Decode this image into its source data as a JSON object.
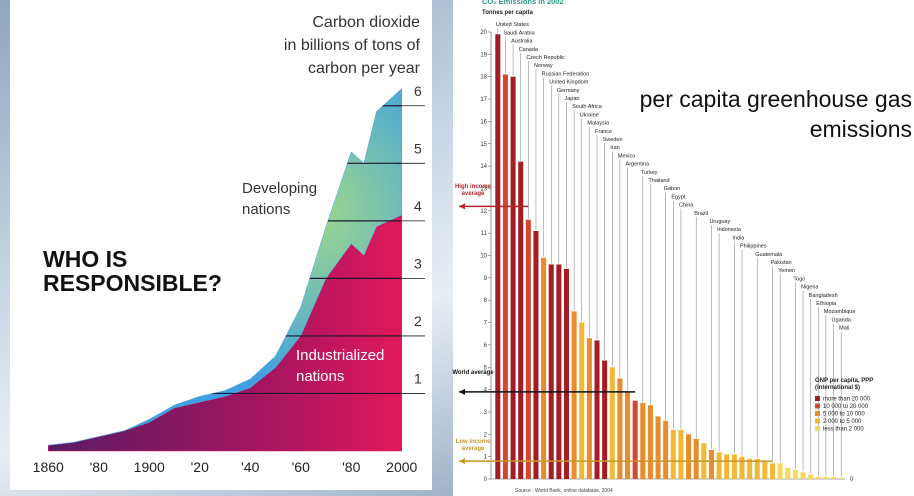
{
  "chart_data": [
    {
      "type": "stacked-area",
      "title": [
        "Carbon dioxide",
        "in billions of tons of",
        "carbon per year"
      ],
      "annotation": [
        "WHO IS",
        "RESPONSIBLE?"
      ],
      "x": [
        1860,
        1870,
        1880,
        1890,
        1900,
        1910,
        1920,
        1930,
        1940,
        1950,
        1960,
        1970,
        1980,
        1985,
        1990,
        2000
      ],
      "series": [
        {
          "name": "Industrialized nations",
          "color": "#d81b5c",
          "values": [
            0.1,
            0.15,
            0.25,
            0.35,
            0.5,
            0.75,
            0.85,
            0.95,
            1.1,
            1.45,
            2.0,
            3.0,
            3.6,
            3.4,
            3.9,
            4.1
          ]
        },
        {
          "name": "Developing nations",
          "color": "#4fa3e3",
          "values": [
            0,
            0,
            0,
            0,
            0.05,
            0.05,
            0.1,
            0.1,
            0.15,
            0.2,
            0.5,
            0.9,
            1.6,
            1.6,
            2.0,
            2.2
          ]
        }
      ],
      "xlim": [
        1850,
        2010
      ],
      "xticks": [
        1860,
        {
          "value": 1880,
          "label": "'80"
        },
        1900,
        {
          "value": 1920,
          "label": "'20"
        },
        {
          "value": 1940,
          "label": "'40"
        },
        {
          "value": 1960,
          "label": "'60"
        },
        {
          "value": 1980,
          "label": "'80"
        },
        2000
      ],
      "ylim": [
        0,
        6.5
      ],
      "yticks": [
        1,
        2,
        3,
        4,
        5,
        6
      ],
      "grid": true
    },
    {
      "type": "bar",
      "title": "CO₂ Emissions in 2002",
      "ylabel": "Tonnes per capita",
      "overlay": "per capita greenhouse gas emissions",
      "source": "Source : World Bank, online database, 2004",
      "categories": [
        "United States",
        "Saudi Arabia",
        "Australia",
        "Canada",
        "Czech Republic",
        "Norway",
        "Russian Federation",
        "United Kingdom",
        "Germany",
        "Japan",
        "South Africa",
        "Ukraine",
        "Malaysia",
        "France",
        "Sweden",
        "Iran",
        "Mexico",
        "Argentina",
        null,
        "Turkey",
        "Thailand",
        null,
        "Gabon",
        "Egypt",
        "China",
        null,
        "Brazil",
        null,
        "Uruguay",
        "Indonesia",
        null,
        "India",
        "Philippines",
        null,
        "Guatemala",
        null,
        "Pakistan",
        "Yemen",
        null,
        "Togo",
        "Nigeria",
        "Bangladesh",
        "Ethiopia",
        "Mozambique",
        "Uganda",
        "Mali"
      ],
      "values": [
        19.9,
        18.1,
        18.0,
        14.2,
        11.6,
        11.1,
        9.9,
        9.6,
        9.6,
        9.4,
        7.5,
        7.0,
        6.3,
        6.2,
        5.3,
        5.0,
        4.5,
        3.9,
        3.5,
        3.4,
        3.3,
        2.8,
        2.6,
        2.2,
        2.2,
        2.0,
        1.8,
        1.6,
        1.3,
        1.2,
        1.1,
        1.1,
        1.0,
        0.9,
        0.9,
        0.8,
        0.7,
        0.7,
        0.5,
        0.4,
        0.3,
        0.2,
        0.1,
        0.1,
        0.1,
        0.05
      ],
      "colors": [
        "#a51d24",
        "#d4472e",
        "#a51d24",
        "#a51d24",
        "#d4472e",
        "#a51d24",
        "#e98c2c",
        "#a51d24",
        "#a51d24",
        "#a51d24",
        "#e98c2c",
        "#f1b834",
        "#e98c2c",
        "#a51d24",
        "#a51d24",
        "#f1b834",
        "#e98c2c",
        "#e98c2c",
        "#d4472e",
        "#e98c2c",
        "#e98c2c",
        "#e98c2c",
        "#e98c2c",
        "#f1b834",
        "#f1b834",
        "#e98c2c",
        "#e98c2c",
        "#f1b834",
        "#e98c2c",
        "#f1b834",
        "#f1b834",
        "#f1b834",
        "#f1b834",
        "#f1b834",
        "#f1b834",
        "#f1b834",
        "#f1b834",
        "#f6d85e",
        "#f6d85e",
        "#f6d85e",
        "#f6d85e",
        "#f6d85e",
        "#f6d85e",
        "#f6d85e",
        "#f6d85e",
        "#f6d85e"
      ],
      "legend_title": "GNP per capita, PPP (international $)",
      "legend": [
        {
          "name": "more than 20 000",
          "color": "#a51d24"
        },
        {
          "name": "10 000 to 20 000",
          "color": "#d4472e"
        },
        {
          "name": "5 000 to 10 000",
          "color": "#e98c2c"
        },
        {
          "name": "2 000 to 5 000",
          "color": "#f1b834"
        },
        {
          "name": "less than 2 000",
          "color": "#f6d85e"
        }
      ],
      "averages": [
        {
          "label": "High income average",
          "value": 12.2,
          "color": "#b3262b"
        },
        {
          "label": "World average",
          "value": 3.9,
          "color": "#111111"
        },
        {
          "label": "Low income average",
          "value": 0.8,
          "color": "#c8962a"
        }
      ],
      "ylim": [
        0,
        20
      ],
      "yticks": [
        0,
        1,
        2,
        3,
        4,
        5,
        6,
        7,
        8,
        9,
        10,
        11,
        12,
        13,
        14,
        15,
        16,
        17,
        18,
        19,
        20
      ],
      "y2lim": [
        0,
        20
      ],
      "y2ticks": [
        0
      ]
    }
  ]
}
